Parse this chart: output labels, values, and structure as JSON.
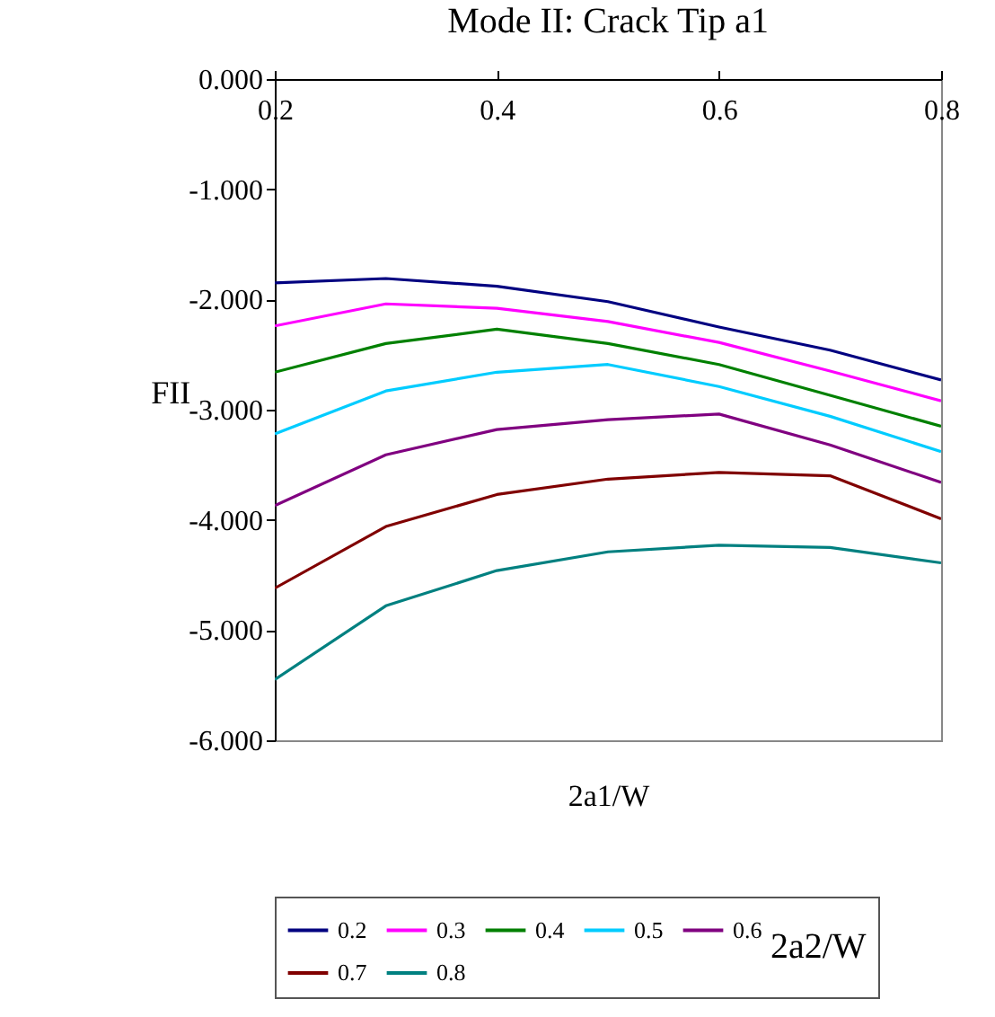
{
  "chart_data": {
    "type": "line",
    "title": "Mode II: Crack Tip a1",
    "xlabel": "2a1/W",
    "ylabel": "FII",
    "legend_title": "2a2/W",
    "legend": "bottom",
    "x": [
      0.2,
      0.3,
      0.4,
      0.5,
      0.6,
      0.7,
      0.8
    ],
    "xlim": [
      0.2,
      0.8
    ],
    "xticks": [
      0.2,
      0.4,
      0.6,
      0.8
    ],
    "ylim": [
      -6,
      0
    ],
    "yticks": [
      {
        "value": 0,
        "label": "0.000"
      },
      {
        "value": -1,
        "label": "-1.000"
      },
      {
        "value": -2,
        "label": "-2.000"
      },
      {
        "value": -3,
        "label": "-3.000"
      },
      {
        "value": -4,
        "label": "-4.000"
      },
      {
        "value": -5,
        "label": "-5.000"
      },
      {
        "value": -6,
        "label": "-6.000"
      }
    ],
    "grid": false,
    "marker": "none",
    "line_style": "solid",
    "series": [
      {
        "name": "0.2",
        "color": "#000080",
        "values": [
          -1.85,
          -1.81,
          -1.88,
          -2.02,
          -2.25,
          -2.46,
          -2.73
        ]
      },
      {
        "name": "0.3",
        "color": "#ff00ff",
        "values": [
          -2.24,
          -2.04,
          -2.08,
          -2.2,
          -2.39,
          -2.65,
          -2.92
        ]
      },
      {
        "name": "0.4",
        "color": "#008000",
        "values": [
          -2.66,
          -2.4,
          -2.27,
          -2.4,
          -2.59,
          -2.87,
          -3.15
        ]
      },
      {
        "name": "0.5",
        "color": "#00ccff",
        "values": [
          -3.22,
          -2.83,
          -2.66,
          -2.59,
          -2.79,
          -3.06,
          -3.38
        ]
      },
      {
        "name": "0.6",
        "color": "#800080",
        "values": [
          -3.87,
          -3.41,
          -3.18,
          -3.09,
          -3.04,
          -3.32,
          -3.66
        ]
      },
      {
        "name": "0.7",
        "color": "#800000",
        "values": [
          -4.62,
          -4.06,
          -3.77,
          -3.63,
          -3.57,
          -3.6,
          -3.99
        ]
      },
      {
        "name": "0.8",
        "color": "#008080",
        "values": [
          -5.45,
          -4.78,
          -4.46,
          -4.29,
          -4.23,
          -4.25,
          -4.39
        ]
      }
    ]
  }
}
